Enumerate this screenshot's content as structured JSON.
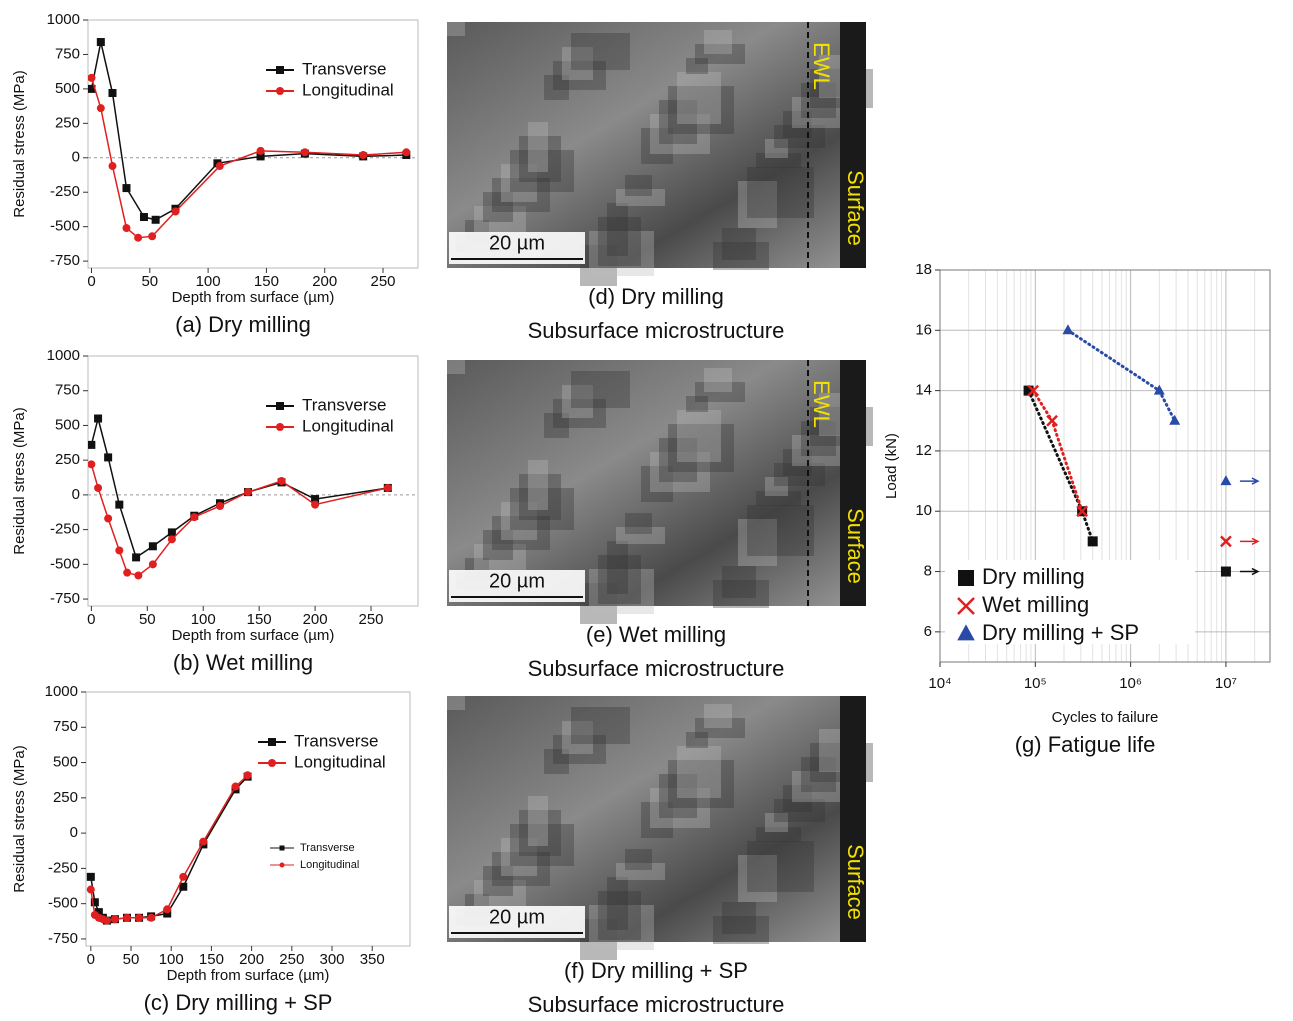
{
  "chart_data": [
    {
      "type": "line",
      "caption": "(a) Dry milling",
      "x_label": "Depth from surface (µm)",
      "y_label": "Residual stress (MPa)",
      "xlim": [
        -3,
        280
      ],
      "xticks": [
        0,
        50,
        100,
        150,
        200,
        250
      ],
      "ylim": [
        -800,
        1000
      ],
      "yticks": [
        -750,
        -500,
        -250,
        0,
        250,
        500,
        750,
        1000
      ],
      "legend": "upper right",
      "zero_line": true,
      "series": [
        {
          "name": "Transverse",
          "color": "#111111",
          "marker": "square",
          "x": [
            0,
            8,
            18,
            30,
            45,
            55,
            72,
            108,
            145,
            183,
            233,
            270
          ],
          "values": [
            500,
            840,
            470,
            -220,
            -430,
            -450,
            -370,
            -40,
            10,
            30,
            10,
            20
          ]
        },
        {
          "name": "Longitudinal",
          "color": "#e02020",
          "marker": "circle",
          "x": [
            0,
            8,
            18,
            30,
            40,
            52,
            72,
            110,
            145,
            183,
            233,
            270
          ],
          "values": [
            580,
            360,
            -60,
            -510,
            -580,
            -570,
            -390,
            -60,
            50,
            40,
            20,
            40
          ]
        }
      ]
    },
    {
      "type": "line",
      "caption": "(b) Wet milling",
      "x_label": "Depth from surface (µm)",
      "y_label": "Residual stress (MPa)",
      "xlim": [
        -3,
        292
      ],
      "xticks": [
        0,
        50,
        100,
        150,
        200,
        250
      ],
      "ylim": [
        -800,
        1000
      ],
      "yticks": [
        -750,
        -500,
        -250,
        0,
        250,
        500,
        750,
        1000
      ],
      "legend": "upper right",
      "zero_line": true,
      "series": [
        {
          "name": "Transverse",
          "color": "#111111",
          "marker": "square",
          "x": [
            0,
            6,
            15,
            25,
            40,
            55,
            72,
            92,
            115,
            140,
            170,
            200,
            265
          ],
          "values": [
            360,
            550,
            270,
            -70,
            -450,
            -370,
            -270,
            -150,
            -60,
            20,
            90,
            -30,
            50
          ]
        },
        {
          "name": "Longitudinal",
          "color": "#e02020",
          "marker": "circle",
          "x": [
            0,
            6,
            15,
            25,
            32,
            42,
            55,
            72,
            92,
            115,
            140,
            170,
            200,
            265
          ],
          "values": [
            220,
            50,
            -170,
            -400,
            -560,
            -580,
            -500,
            -320,
            -160,
            -80,
            20,
            100,
            -70,
            50
          ]
        }
      ]
    },
    {
      "type": "line",
      "caption": "(c) Dry milling + SP",
      "x_label": "Depth from surface (µm)",
      "y_label": "Residual stress (MPa)",
      "xlim": [
        -6,
        397
      ],
      "xticks": [
        0,
        50,
        100,
        150,
        200,
        250,
        300,
        350
      ],
      "ylim": [
        -800,
        1000
      ],
      "yticks": [
        -750,
        -500,
        -250,
        0,
        250,
        500,
        750,
        1000
      ],
      "legend": "upper right",
      "zero_line": false,
      "duplicate_legend": true,
      "series": [
        {
          "name": "Transverse",
          "color": "#111111",
          "marker": "square",
          "x": [
            0,
            5,
            10,
            15,
            20,
            30,
            45,
            60,
            75,
            95,
            115,
            140,
            180,
            195
          ],
          "values": [
            -310,
            -490,
            -560,
            -600,
            -620,
            -610,
            -600,
            -600,
            -590,
            -570,
            -380,
            -80,
            310,
            400
          ]
        },
        {
          "name": "Longitudinal",
          "color": "#e02020",
          "marker": "circle",
          "x": [
            0,
            5,
            10,
            15,
            20,
            30,
            45,
            60,
            75,
            95,
            115,
            140,
            180,
            195
          ],
          "values": [
            -400,
            -580,
            -600,
            -610,
            -620,
            -610,
            -600,
            -600,
            -600,
            -540,
            -310,
            -60,
            330,
            410
          ]
        }
      ]
    },
    {
      "type": "scatter",
      "caption": "(g) Fatigue life",
      "x_label": "Cycles to failure",
      "y_label": "Load (kN)",
      "x_scale": "log",
      "xlim": [
        10000,
        29000000
      ],
      "xticks": [
        {
          "value": 10000,
          "label": "10⁴"
        },
        {
          "value": 100000,
          "label": "10⁵"
        },
        {
          "value": 1000000,
          "label": "10⁶"
        },
        {
          "value": 10000000,
          "label": "10⁷"
        }
      ],
      "ylim": [
        5,
        18
      ],
      "yticks": [
        6,
        8,
        10,
        12,
        14,
        16,
        18
      ],
      "grid": true,
      "legend": "lower left",
      "series": [
        {
          "name": "Dry milling",
          "color": "#111111",
          "marker": "square",
          "x": [
            85000,
            310000,
            400000,
            10000000
          ],
          "values": [
            14,
            10,
            9,
            8
          ]
        },
        {
          "name": "Wet milling",
          "color": "#e02020",
          "marker": "x",
          "x": [
            95000,
            150000,
            310000,
            10000000
          ],
          "values": [
            14,
            13,
            10,
            9
          ]
        },
        {
          "name": "Dry milling + SP",
          "color": "#2a4aa8",
          "marker": "triangle",
          "x": [
            220000,
            2000000,
            2900000,
            10000000
          ],
          "values": [
            16,
            14,
            13,
            11
          ]
        }
      ]
    }
  ],
  "micrographs": [
    {
      "scale_bar": "20 µm",
      "labels": [
        "EWL",
        "Surface"
      ],
      "caption": [
        "(d) Dry milling",
        "Subsurface microstructure"
      ]
    },
    {
      "scale_bar": "20 µm",
      "labels": [
        "EWL",
        "Surface"
      ],
      "caption": [
        "(e) Wet milling",
        "Subsurface microstructure"
      ]
    },
    {
      "scale_bar": "20 µm",
      "labels": [
        "Surface"
      ],
      "caption": [
        "(f) Dry milling + SP",
        "Subsurface microstructure"
      ]
    }
  ]
}
